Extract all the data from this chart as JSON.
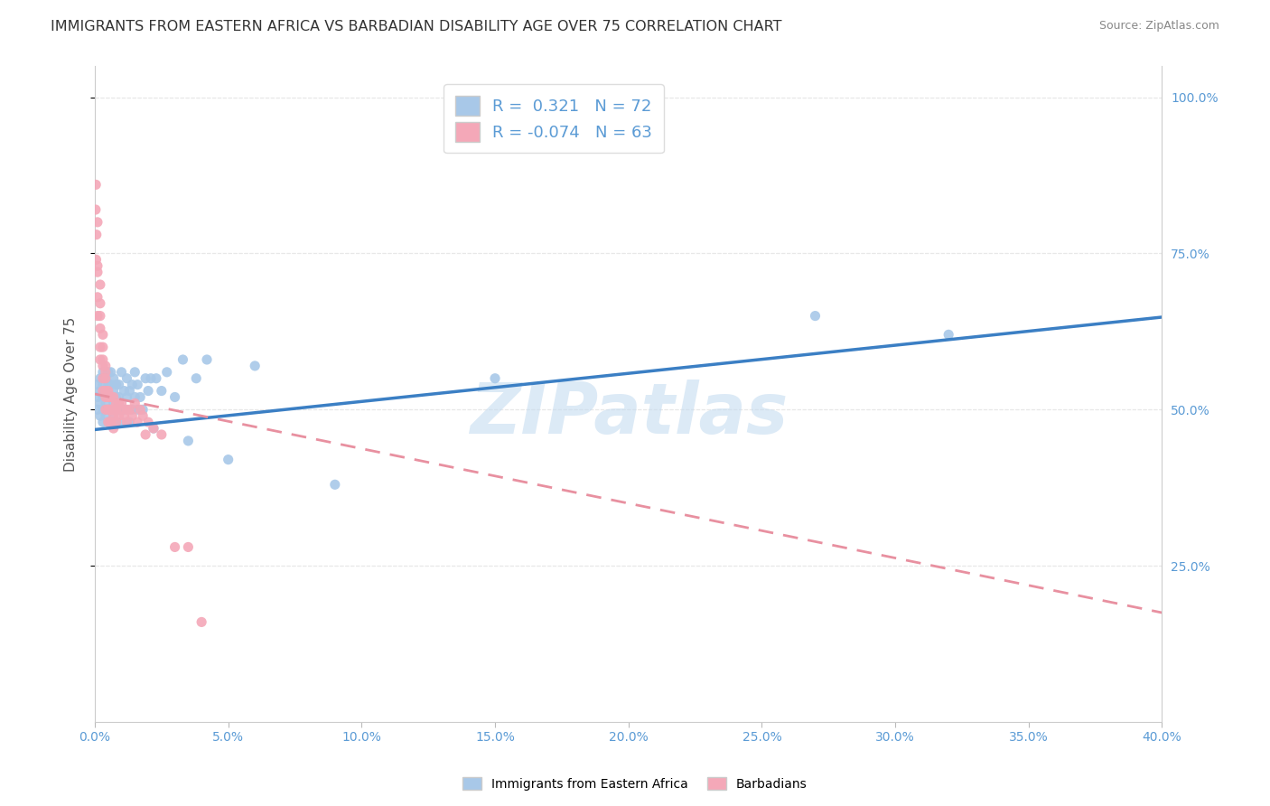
{
  "title": "IMMIGRANTS FROM EASTERN AFRICA VS BARBADIAN DISABILITY AGE OVER 75 CORRELATION CHART",
  "source": "Source: ZipAtlas.com",
  "ylabel": "Disability Age Over 75",
  "xlim": [
    0.0,
    0.4
  ],
  "ylim": [
    0.0,
    1.05
  ],
  "blue_R": 0.321,
  "blue_N": 72,
  "pink_R": -0.074,
  "pink_N": 63,
  "blue_color": "#A8C8E8",
  "pink_color": "#F4A8B8",
  "blue_line_color": "#3B7FC4",
  "pink_line_color": "#E890A0",
  "right_axis_color": "#5B9BD5",
  "watermark": "ZIPatlas",
  "title_color": "#333333",
  "grid_color": "#E8E8E8",
  "tick_color": "#5B9BD5",
  "blue_scatter_x": [
    0.001,
    0.001,
    0.001,
    0.002,
    0.002,
    0.002,
    0.002,
    0.003,
    0.003,
    0.003,
    0.003,
    0.003,
    0.004,
    0.004,
    0.004,
    0.004,
    0.004,
    0.005,
    0.005,
    0.005,
    0.005,
    0.005,
    0.006,
    0.006,
    0.006,
    0.006,
    0.007,
    0.007,
    0.007,
    0.007,
    0.008,
    0.008,
    0.008,
    0.008,
    0.009,
    0.009,
    0.009,
    0.01,
    0.01,
    0.01,
    0.011,
    0.011,
    0.012,
    0.012,
    0.013,
    0.013,
    0.014,
    0.014,
    0.015,
    0.015,
    0.016,
    0.016,
    0.017,
    0.018,
    0.019,
    0.02,
    0.021,
    0.022,
    0.023,
    0.025,
    0.027,
    0.03,
    0.033,
    0.035,
    0.038,
    0.042,
    0.05,
    0.06,
    0.09,
    0.15,
    0.27,
    0.32
  ],
  "blue_scatter_y": [
    0.5,
    0.52,
    0.54,
    0.49,
    0.51,
    0.53,
    0.55,
    0.48,
    0.5,
    0.52,
    0.54,
    0.56,
    0.49,
    0.51,
    0.53,
    0.55,
    0.5,
    0.5,
    0.52,
    0.54,
    0.56,
    0.48,
    0.5,
    0.52,
    0.54,
    0.56,
    0.49,
    0.51,
    0.53,
    0.55,
    0.48,
    0.5,
    0.52,
    0.54,
    0.5,
    0.52,
    0.54,
    0.48,
    0.5,
    0.56,
    0.5,
    0.53,
    0.52,
    0.55,
    0.48,
    0.53,
    0.5,
    0.54,
    0.52,
    0.56,
    0.5,
    0.54,
    0.52,
    0.5,
    0.55,
    0.53,
    0.55,
    0.47,
    0.55,
    0.53,
    0.56,
    0.52,
    0.58,
    0.45,
    0.55,
    0.58,
    0.42,
    0.57,
    0.38,
    0.55,
    0.65,
    0.62
  ],
  "pink_scatter_x": [
    0.0003,
    0.0004,
    0.0005,
    0.0006,
    0.001,
    0.001,
    0.001,
    0.001,
    0.001,
    0.002,
    0.002,
    0.002,
    0.002,
    0.002,
    0.002,
    0.003,
    0.003,
    0.003,
    0.003,
    0.003,
    0.003,
    0.004,
    0.004,
    0.004,
    0.004,
    0.004,
    0.004,
    0.005,
    0.005,
    0.005,
    0.005,
    0.005,
    0.006,
    0.006,
    0.006,
    0.006,
    0.007,
    0.007,
    0.007,
    0.007,
    0.008,
    0.008,
    0.008,
    0.009,
    0.009,
    0.01,
    0.01,
    0.011,
    0.012,
    0.012,
    0.013,
    0.014,
    0.015,
    0.016,
    0.017,
    0.018,
    0.019,
    0.02,
    0.022,
    0.025,
    0.03,
    0.035,
    0.04
  ],
  "pink_scatter_y": [
    0.82,
    0.86,
    0.74,
    0.78,
    0.8,
    0.73,
    0.68,
    0.72,
    0.65,
    0.7,
    0.67,
    0.63,
    0.65,
    0.6,
    0.58,
    0.62,
    0.6,
    0.57,
    0.55,
    0.58,
    0.53,
    0.56,
    0.53,
    0.57,
    0.52,
    0.5,
    0.55,
    0.53,
    0.5,
    0.52,
    0.48,
    0.5,
    0.52,
    0.5,
    0.48,
    0.5,
    0.52,
    0.5,
    0.49,
    0.47,
    0.51,
    0.5,
    0.48,
    0.51,
    0.49,
    0.51,
    0.5,
    0.49,
    0.5,
    0.48,
    0.5,
    0.49,
    0.51,
    0.48,
    0.5,
    0.49,
    0.46,
    0.48,
    0.47,
    0.46,
    0.28,
    0.28,
    0.16
  ],
  "blue_trend_x0": 0.0,
  "blue_trend_y0": 0.468,
  "blue_trend_x1": 0.4,
  "blue_trend_y1": 0.648,
  "pink_trend_x0": 0.0,
  "pink_trend_y0": 0.525,
  "pink_trend_x1": 0.4,
  "pink_trend_y1": 0.175,
  "right_yticks": [
    0.25,
    0.5,
    0.75,
    1.0
  ],
  "right_yticklabels": [
    "25.0%",
    "50.0%",
    "75.0%",
    "100.0%"
  ],
  "xticks": [
    0.0,
    0.05,
    0.1,
    0.15,
    0.2,
    0.25,
    0.3,
    0.35,
    0.4
  ],
  "xticklabels": [
    "0.0%",
    "5.0%",
    "10.0%",
    "15.0%",
    "20.0%",
    "25.0%",
    "30.0%",
    "35.0%",
    "40.0%"
  ]
}
